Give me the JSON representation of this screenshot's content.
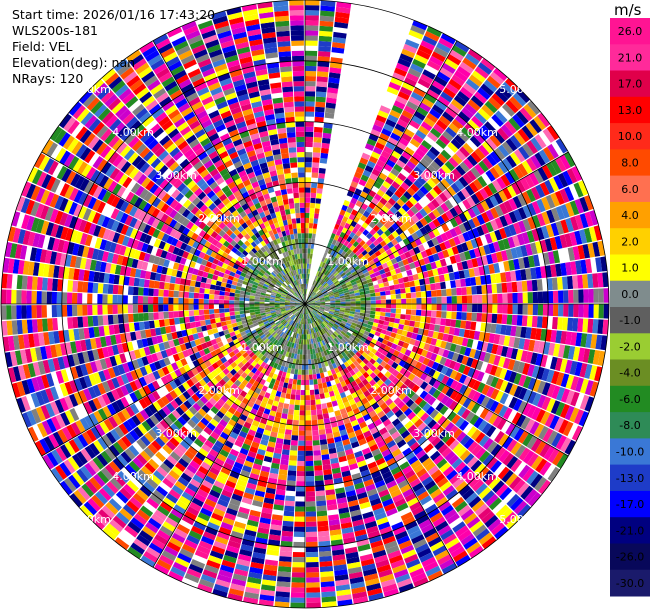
{
  "info": {
    "start_time": "Start time: 2026/01/16 17:43:20",
    "instrument": "WLS200s-181",
    "field": "Field: VEL",
    "elevation": "Elevation(deg): nan",
    "nrays": "NRays: 120"
  },
  "chart_data": {
    "type": "heatmap",
    "projection": "polar-ppi",
    "n_rays": 120,
    "max_range_km": 5.0,
    "range_rings_km": [
      1,
      2,
      3,
      4,
      5
    ],
    "ring_labels": [
      "1.00km",
      "2.00km",
      "3.00km",
      "4.00km",
      "5.00km"
    ],
    "missing_sector_deg": [
      8,
      20
    ],
    "colorbar": {
      "unit": "m/s",
      "ticks": [
        "26.0",
        "21.0",
        "17.0",
        "13.0",
        "10.0",
        "8.0",
        "6.0",
        "4.0",
        "2.0",
        "1.0",
        "0.0",
        "-1.0",
        "-2.0",
        "-4.0",
        "-6.0",
        "-8.0",
        "-10.0",
        "-13.0",
        "-17.0",
        "-21.0",
        "-26.0",
        "-30.0"
      ],
      "colors": [
        "#ff1493",
        "#ff2a9a",
        "#e0004a",
        "#ff0000",
        "#ff2a1a",
        "#ff4a00",
        "#ff7050",
        "#ffa000",
        "#ffd000",
        "#ffff00",
        "#7f8c8d",
        "#5f5f5f",
        "#9acd32",
        "#6b8e23",
        "#228b22",
        "#2e8b57",
        "#3a78d6",
        "#1e3cc8",
        "#0000ff",
        "#000080",
        "#08085a",
        "#1a1a6b"
      ]
    },
    "colors": {
      "near": [
        "#808080",
        "#7a7a7a",
        "#6b8e23",
        "#228b22",
        "#2e8b57",
        "#9acd32",
        "#3a78d6",
        "#8c8c8c",
        "#556b2f"
      ],
      "mid_warm": [
        "#ffff00",
        "#ffd000",
        "#ffa000",
        "#ff7050",
        "#ff4a00",
        "#ff1493",
        "#ff2a9a",
        "#e0004a"
      ],
      "far": [
        "#ff1493",
        "#ff00aa",
        "#0000ff",
        "#1e3cc8",
        "#000080",
        "#ffff00",
        "#ff0000",
        "#00008b",
        "#e60073",
        "#ff69b4",
        "#3a78d6",
        "#ff4a00",
        "#228b22",
        "#808080",
        "#ffa000",
        "#cc00cc"
      ]
    }
  }
}
